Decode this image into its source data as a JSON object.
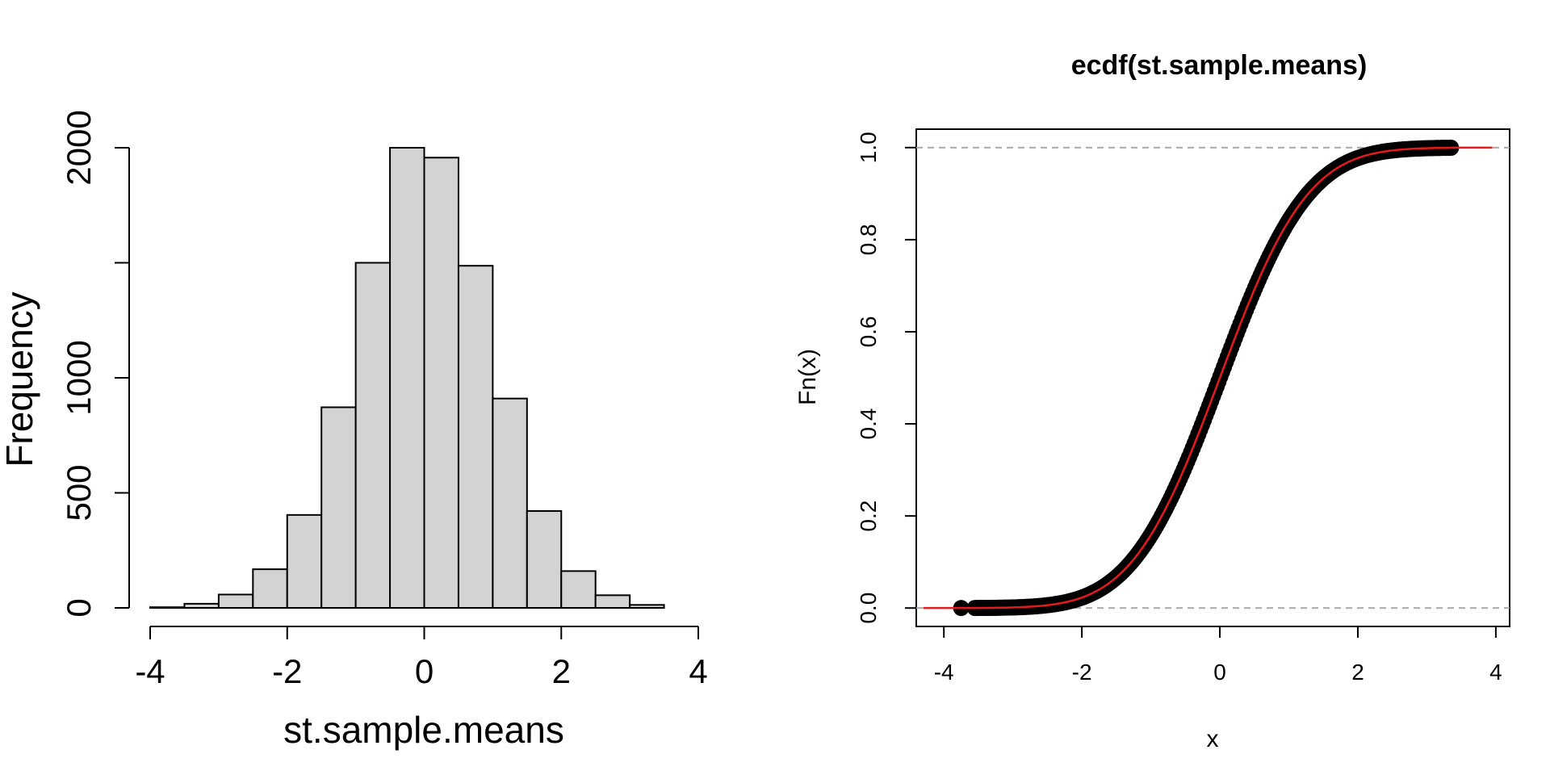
{
  "chart_data": [
    {
      "type": "bar",
      "title": "",
      "xlabel": "st.sample.means",
      "ylabel": "Frequency",
      "bin_edges": [
        -4,
        -3.5,
        -3,
        -2.5,
        -2,
        -1.5,
        -1,
        -0.5,
        0,
        0.5,
        1,
        1.5,
        2,
        2.5,
        3,
        3.5
      ],
      "values": [
        3,
        18,
        58,
        168,
        404,
        872,
        1500,
        2000,
        1957,
        1487,
        910,
        421,
        160,
        55,
        13
      ],
      "xlim": [
        -4,
        4
      ],
      "ylim": [
        0,
        2000
      ],
      "x_ticks": [
        "-4",
        "-2",
        "0",
        "2",
        "4"
      ],
      "y_ticks": [
        "0",
        "500",
        "1000",
        "",
        "2000"
      ],
      "y_tick_values": [
        0,
        500,
        1000,
        1500,
        2000
      ],
      "grid": false,
      "bar_color": "#d3d3d3"
    },
    {
      "type": "line",
      "title": "ecdf(st.sample.means)",
      "xlabel": "x",
      "ylabel": "Fn(x)",
      "xlim": [
        -4.4,
        4.2
      ],
      "ylim": [
        -0.04,
        1.04
      ],
      "x_ticks": [
        "-4",
        "-2",
        "0",
        "2",
        "4"
      ],
      "x_tick_values": [
        -4,
        -2,
        0,
        2,
        4
      ],
      "y_ticks": [
        "0.0",
        "0.2",
        "0.4",
        "0.6",
        "0.8",
        "1.0"
      ],
      "y_tick_values": [
        0,
        0.2,
        0.4,
        0.6,
        0.8,
        1.0
      ],
      "data_range": [
        -3.75,
        3.35
      ],
      "reference_lines": [
        0,
        1
      ],
      "series": [
        {
          "values": "empirical CDF points",
          "color": "#000000"
        },
        {
          "values": "normal CDF",
          "color": "#e41a1c"
        }
      ],
      "grid": false
    }
  ]
}
